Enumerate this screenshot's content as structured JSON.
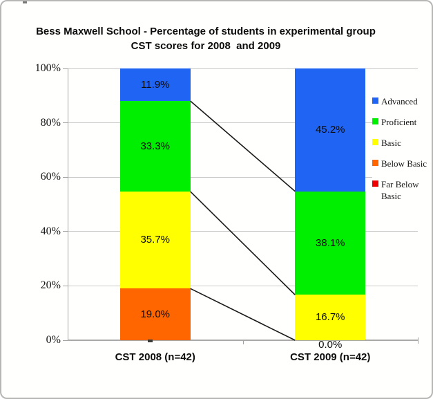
{
  "chart_data": {
    "type": "bar",
    "subtype": "stacked-100-percent-column",
    "title_line1": "Bess Maxwell School - Percentage of students in experimental group",
    "title_line2": "CST scores for 2008  and 2009",
    "categories": [
      "CST 2008 (n=42)",
      "CST 2009 (n=42)"
    ],
    "series": [
      {
        "name": "Far Below Basic",
        "color": "#ee0000",
        "values": [
          0.0,
          0.0
        ],
        "labels": [
          "",
          ""
        ]
      },
      {
        "name": "Below Basic",
        "color": "#ff6600",
        "values": [
          19.0,
          0.0
        ],
        "labels": [
          "19.0%",
          "0.0%"
        ]
      },
      {
        "name": "Basic",
        "color": "#ffff00",
        "values": [
          35.7,
          16.7
        ],
        "labels": [
          "35.7%",
          "16.7%"
        ]
      },
      {
        "name": "Proficient",
        "color": "#00ee00",
        "values": [
          33.3,
          38.1
        ],
        "labels": [
          "33.3%",
          "38.1%"
        ]
      },
      {
        "name": "Advanced",
        "color": "#2064f4",
        "values": [
          11.9,
          45.2
        ],
        "labels": [
          "11.9%",
          "45.2%"
        ]
      }
    ],
    "connector_boundaries": [
      1,
      2,
      3
    ],
    "connector_color": "#1a1a1a",
    "ylim": [
      0,
      100
    ],
    "yticks": [
      0,
      20,
      40,
      60,
      80,
      100
    ],
    "ytick_labels": [
      "0%",
      "20%",
      "40%",
      "60%",
      "80%",
      "100%"
    ],
    "grid": true,
    "legend_position": "right",
    "legend": [
      "Advanced",
      "Proficient",
      "Basic",
      "Below Basic",
      "Far Below Basic"
    ]
  }
}
